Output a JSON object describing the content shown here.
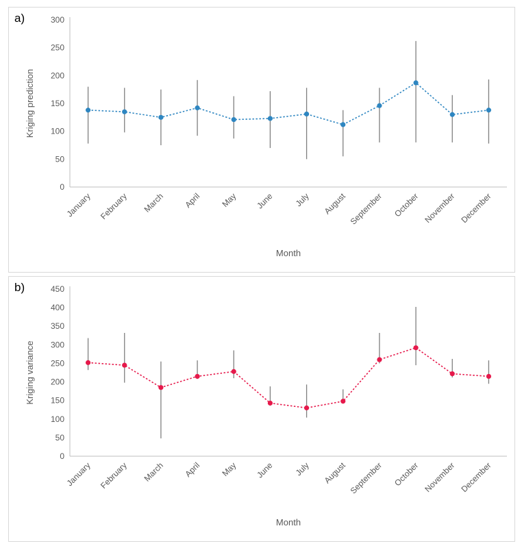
{
  "chart_data": [
    {
      "panel_label": "a)",
      "type": "line",
      "xlabel": "Month",
      "ylabel": "Kriging prediction",
      "ylim": [
        0,
        300
      ],
      "yticks": [
        0,
        50,
        100,
        150,
        200,
        250,
        300
      ],
      "categories": [
        "January",
        "February",
        "March",
        "April",
        "May",
        "June",
        "July",
        "August",
        "September",
        "October",
        "November",
        "December"
      ],
      "series": [
        {
          "values": [
            138,
            135,
            125,
            142,
            121,
            123,
            131,
            112,
            146,
            187,
            130,
            138
          ],
          "err_low": [
            78,
            98,
            75,
            92,
            87,
            70,
            50,
            55,
            80,
            80,
            80,
            78
          ],
          "err_high": [
            180,
            178,
            175,
            192,
            163,
            172,
            178,
            138,
            178,
            262,
            165,
            193
          ],
          "color": "#2e86c1"
        }
      ],
      "grid": false
    },
    {
      "panel_label": "b)",
      "type": "line",
      "xlabel": "Month",
      "ylabel": "Kriging variance",
      "ylim": [
        0,
        450
      ],
      "yticks": [
        0,
        50,
        100,
        150,
        200,
        250,
        300,
        350,
        400,
        450
      ],
      "categories": [
        "January",
        "February",
        "March",
        "April",
        "May",
        "June",
        "July",
        "August",
        "September",
        "October",
        "November",
        "December"
      ],
      "series": [
        {
          "values": [
            252,
            245,
            185,
            215,
            228,
            143,
            130,
            148,
            260,
            292,
            222,
            215
          ],
          "err_low": [
            232,
            198,
            48,
            208,
            210,
            136,
            104,
            143,
            250,
            245,
            212,
            195
          ],
          "err_high": [
            318,
            332,
            255,
            258,
            285,
            188,
            193,
            180,
            332,
            402,
            262,
            258
          ],
          "color": "#e6194b"
        }
      ],
      "grid": false
    }
  ]
}
